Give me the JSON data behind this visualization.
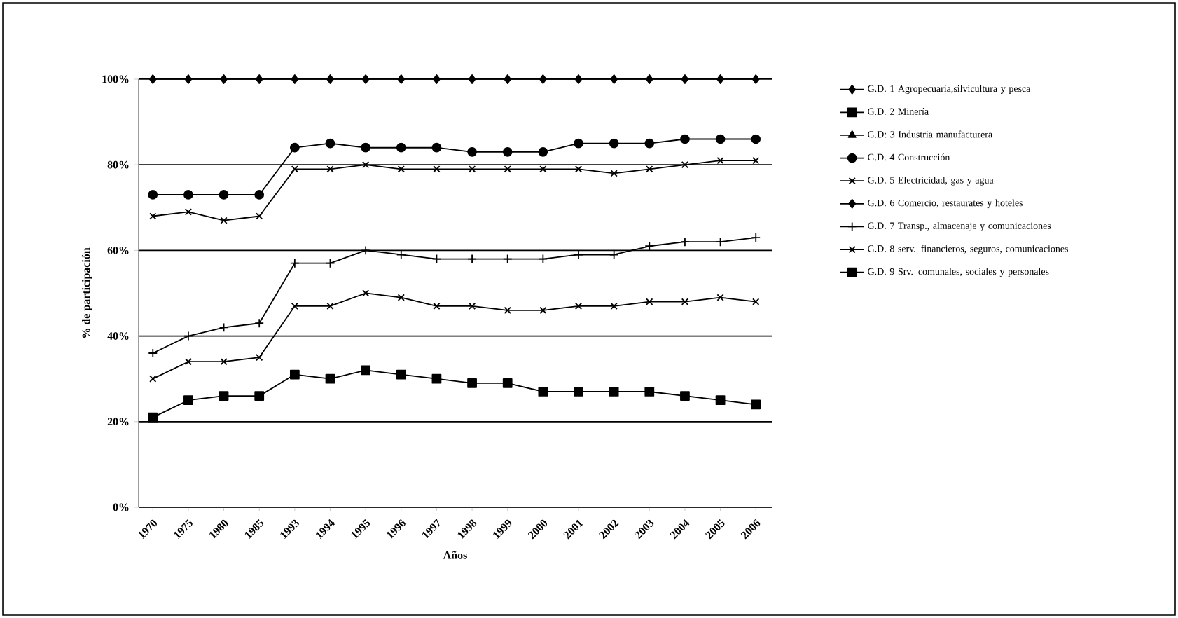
{
  "chart_data": {
    "type": "line",
    "xlabel": "Años",
    "ylabel": "% de participación",
    "categories": [
      "1970",
      "1975",
      "1980",
      "1985",
      "1993",
      "1994",
      "1995",
      "1996",
      "1997",
      "1998",
      "1999",
      "2000",
      "2001",
      "2002",
      "2003",
      "2004",
      "2005",
      "2006"
    ],
    "ylim": [
      0,
      100
    ],
    "yticks": [
      {
        "value": 0,
        "label": "0%"
      },
      {
        "value": 20,
        "label": "20%"
      },
      {
        "value": 40,
        "label": "40%"
      },
      {
        "value": 60,
        "label": "60%"
      },
      {
        "value": 80,
        "label": "80%"
      },
      {
        "value": 100,
        "label": "100%"
      }
    ],
    "grid": "y",
    "legend": "right",
    "series": [
      {
        "name": "G.D. 1 Agropecuaria,silvicultura y pesca",
        "color": "#000000",
        "marker": "diamond",
        "values": [
          100,
          100,
          100,
          100,
          100,
          100,
          100,
          100,
          100,
          100,
          100,
          100,
          100,
          100,
          100,
          100,
          100,
          100
        ]
      },
      {
        "name": "G.D. 2 Minería",
        "color": "#000000",
        "marker": "square",
        "values": [
          null,
          null,
          null,
          null,
          null,
          null,
          null,
          null,
          null,
          null,
          null,
          null,
          null,
          null,
          null,
          null,
          null,
          null
        ]
      },
      {
        "name": "G.D: 3 Industria manufacturera",
        "color": "#000000",
        "marker": "triangle",
        "values": [
          null,
          null,
          null,
          null,
          null,
          null,
          null,
          null,
          null,
          null,
          null,
          null,
          null,
          null,
          null,
          null,
          null,
          null
        ]
      },
      {
        "name": "G.D. 4 Construcción",
        "color": "#000000",
        "marker": "circle",
        "values": [
          73,
          73,
          73,
          73,
          84,
          85,
          84,
          84,
          84,
          83,
          83,
          83,
          85,
          85,
          85,
          86,
          86,
          86
        ]
      },
      {
        "name": "G.D. 5 Electricidad, gas y agua",
        "color": "#000000",
        "marker": "x",
        "values": [
          68,
          69,
          67,
          68,
          79,
          79,
          80,
          79,
          79,
          79,
          79,
          79,
          79,
          78,
          79,
          80,
          81,
          81
        ]
      },
      {
        "name": "G.D. 6 Comercio, restaurates y hoteles",
        "color": "#000000",
        "marker": "diamond",
        "values": [
          null,
          null,
          null,
          null,
          null,
          null,
          null,
          null,
          null,
          null,
          null,
          null,
          null,
          null,
          null,
          null,
          null,
          null
        ]
      },
      {
        "name": "G.D. 7 Transp., almacenaje y comunicaciones",
        "color": "#000000",
        "marker": "cross",
        "values": [
          36,
          40,
          42,
          43,
          57,
          57,
          60,
          59,
          58,
          58,
          58,
          58,
          59,
          59,
          61,
          62,
          62,
          63
        ]
      },
      {
        "name": "G.D. 8 serv. financieros, seguros, comunicaciones",
        "color": "#000000",
        "marker": "x",
        "values": [
          30,
          34,
          34,
          35,
          47,
          47,
          50,
          49,
          47,
          47,
          46,
          46,
          47,
          47,
          48,
          48,
          49,
          48
        ]
      },
      {
        "name": "G.D. 9 Srv. comunales, sociales y personales",
        "color": "#000000",
        "marker": "square",
        "values": [
          21,
          25,
          26,
          26,
          31,
          30,
          32,
          31,
          30,
          29,
          29,
          27,
          27,
          27,
          27,
          26,
          25,
          24
        ]
      }
    ]
  }
}
